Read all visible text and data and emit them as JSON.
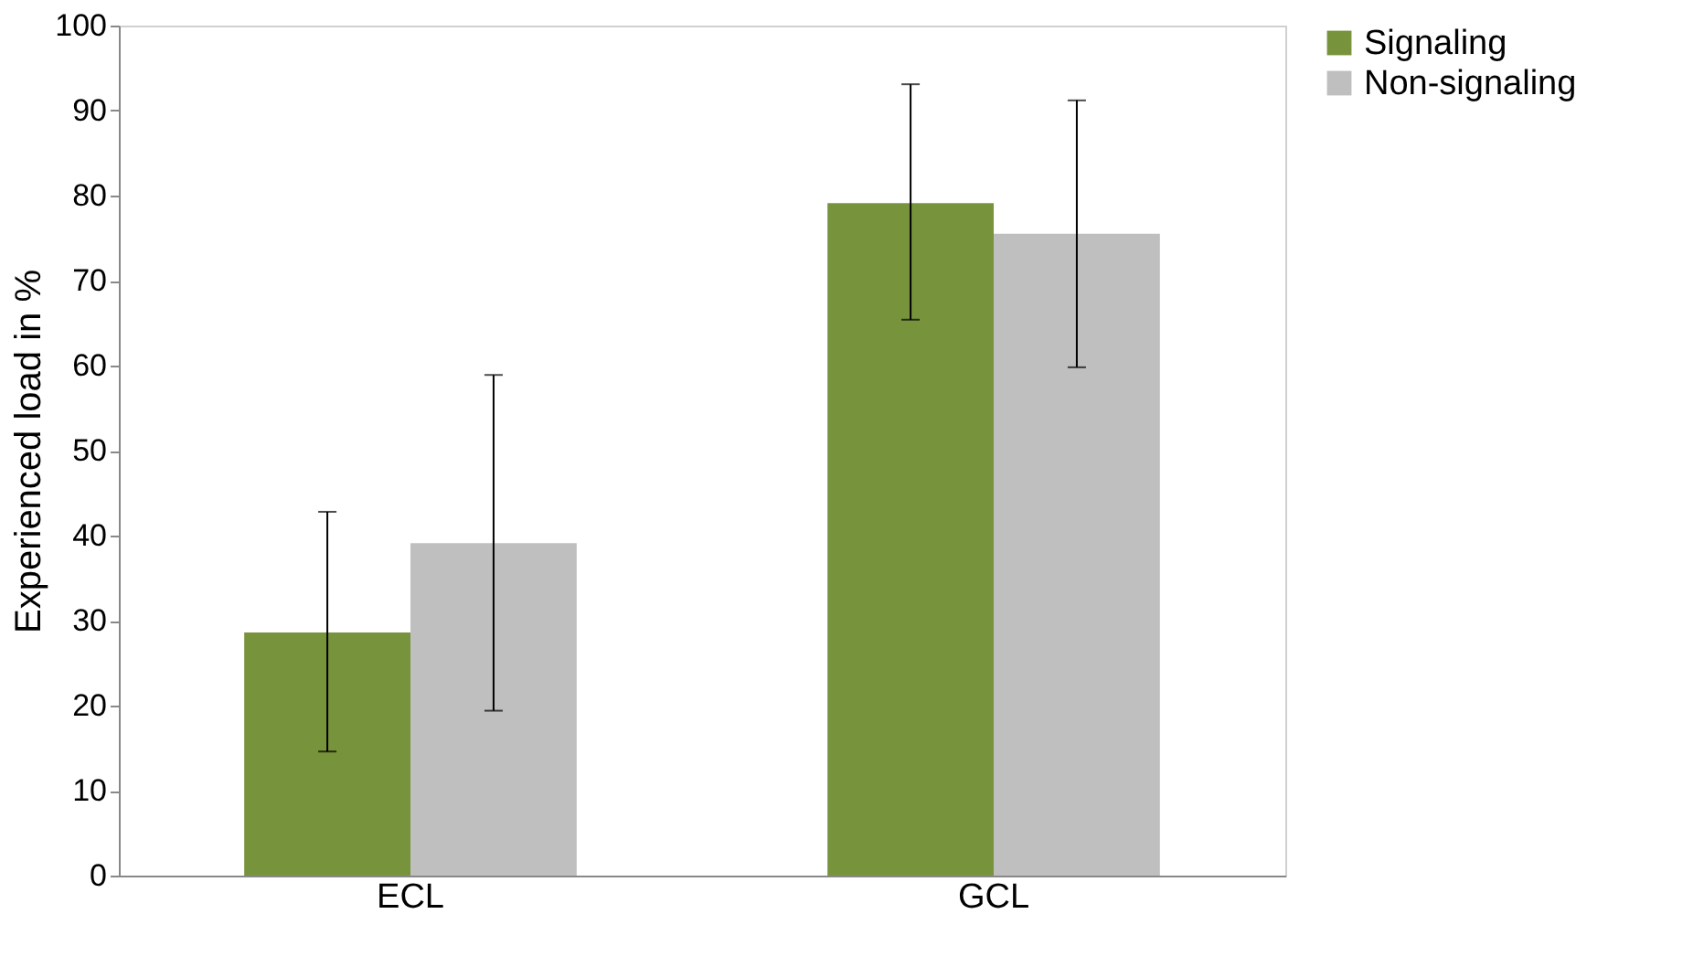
{
  "chart_data": {
    "type": "bar",
    "ylabel": "Experienced load in %",
    "categories": [
      "ECL",
      "GCL"
    ],
    "series": [
      {
        "name": "Signaling",
        "color": "#77933c",
        "values": [
          28.6,
          79.1
        ],
        "errors": [
          [
            14.6,
            42.8
          ],
          [
            65.4,
            93.1
          ]
        ]
      },
      {
        "name": "Non-signaling",
        "color": "#bfbfbf",
        "values": [
          39.1,
          75.5
        ],
        "errors": [
          [
            19.4,
            58.9
          ],
          [
            59.8,
            91.2
          ]
        ]
      }
    ],
    "ylim": [
      0,
      100
    ],
    "yticks": [
      0,
      10,
      20,
      30,
      40,
      50,
      60,
      70,
      80,
      90,
      100
    ],
    "grid": false,
    "legend": "right"
  }
}
